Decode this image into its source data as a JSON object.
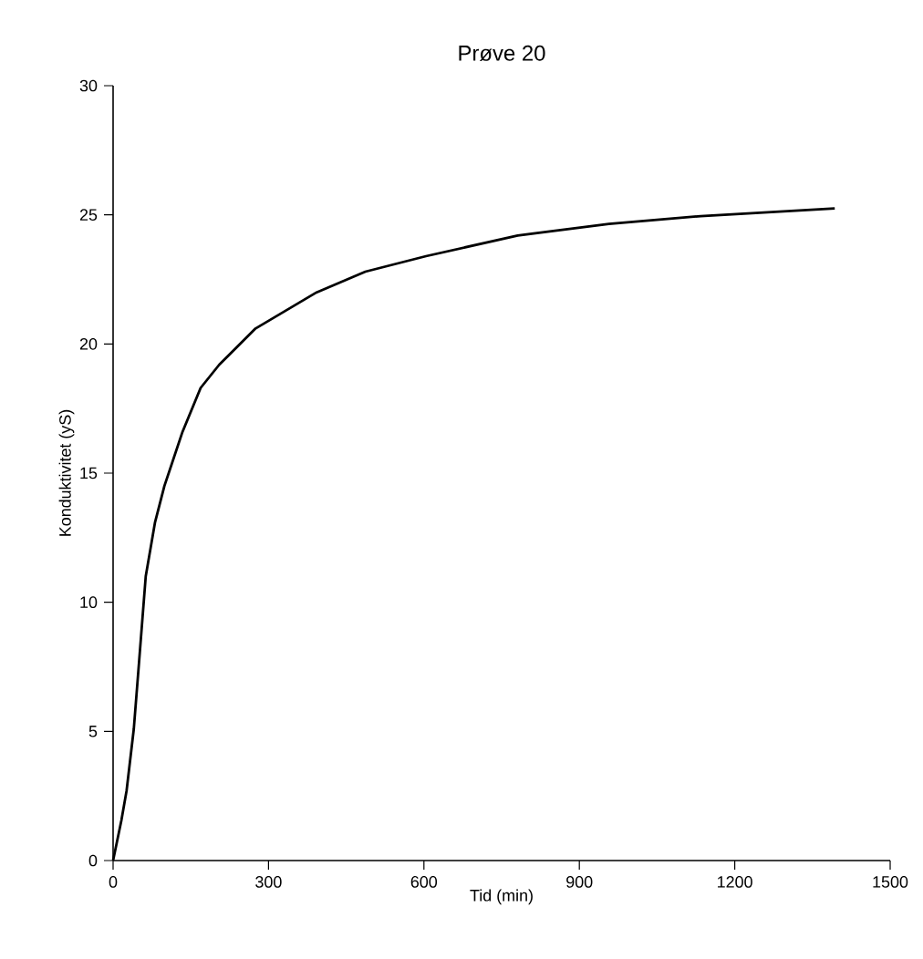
{
  "chart_data": {
    "type": "line",
    "title": "Prøve 20",
    "xlabel": "Tid (min)",
    "ylabel": "Konduktivitet (yS)",
    "x": [
      0,
      16,
      26,
      40,
      49,
      63,
      81,
      99,
      134,
      169,
      205,
      275,
      393,
      487,
      604,
      781,
      957,
      1134,
      1393
    ],
    "series": [
      {
        "color": "#000000",
        "values": [
          0,
          1.55,
          2.7,
          5.1,
          7.4,
          11.0,
          13.1,
          14.5,
          16.6,
          18.3,
          19.2,
          20.6,
          22.0,
          22.8,
          23.4,
          24.2,
          24.65,
          24.95,
          25.25
        ]
      }
    ],
    "xlim": [
      0,
      1500
    ],
    "xticks": [
      0,
      300,
      600,
      900,
      1200,
      1500
    ],
    "ylim": [
      0,
      30
    ],
    "yticks": [
      0,
      5,
      10,
      15,
      20,
      25,
      30
    ],
    "marker": "none",
    "line_style": "solid"
  }
}
